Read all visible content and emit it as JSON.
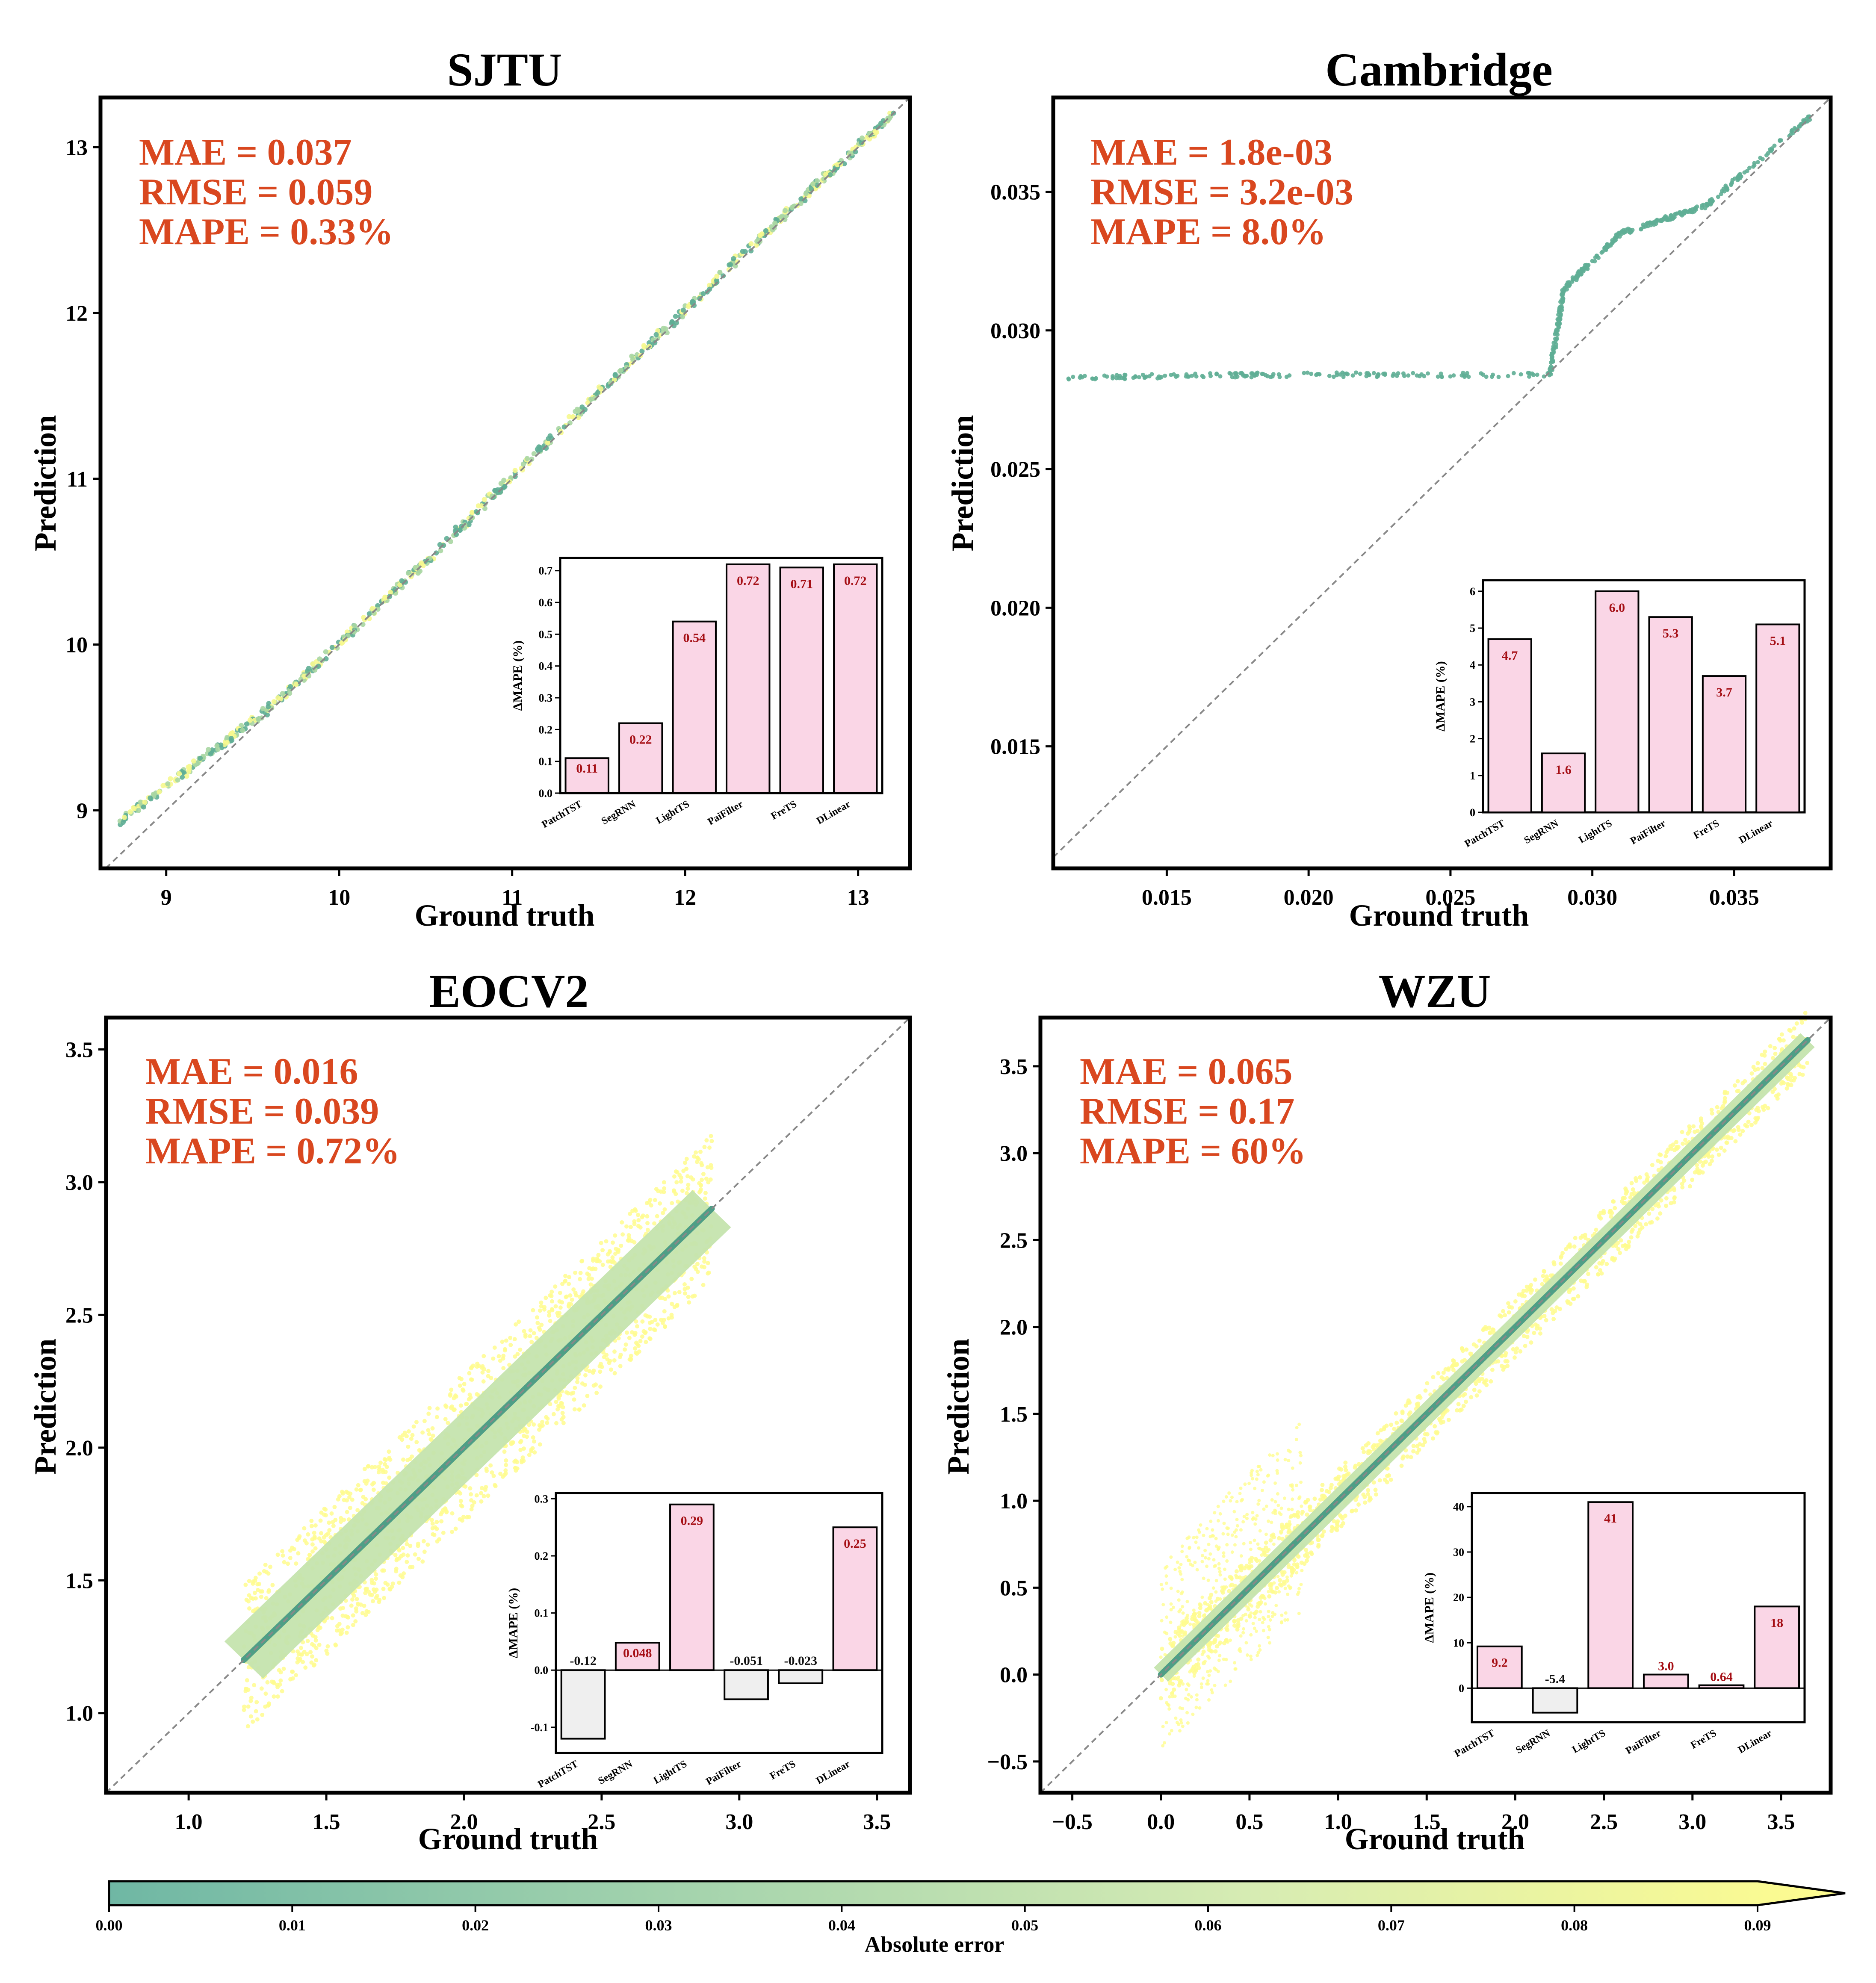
{
  "colors": {
    "metric_text": "#d9471f",
    "bar_positive": "#fad6e6",
    "bar_negative": "#efefef",
    "bar_label": "#a50f15",
    "bar_label_negative": "#111111",
    "diagonal": "#888888",
    "colormap": [
      "#6fb7a4",
      "#a4d3ad",
      "#d7ecb3",
      "#fffc8e"
    ]
  },
  "chart_data": [
    {
      "type": "scatter",
      "title": "SJTU",
      "xlabel": "Ground truth",
      "ylabel": "Prediction",
      "xlim": [
        8.62,
        13.3
      ],
      "ylim": [
        8.65,
        13.3
      ],
      "xticks": [
        "9",
        "10",
        "11",
        "12",
        "13"
      ],
      "xtick_values": [
        9,
        10,
        11,
        12,
        13
      ],
      "yticks": [
        "9",
        "10",
        "11",
        "12",
        "13"
      ],
      "ytick_values": [
        9,
        10,
        11,
        12,
        13
      ],
      "metrics": [
        "MAE = 0.037",
        "RMSE = 0.059",
        "MAPE = 0.33%"
      ],
      "scatter_trend": [
        [
          8.72,
          8.92
        ],
        [
          9.6,
          9.62
        ],
        [
          10.5,
          10.5
        ],
        [
          11.5,
          11.52
        ],
        [
          12.5,
          12.52
        ],
        [
          13.2,
          13.2
        ]
      ],
      "inset": {
        "type": "bar",
        "ylabel": "ΔMAPE (%)",
        "categories": [
          "PatchTST",
          "SegRNN",
          "LightTS",
          "PaiFilter",
          "FreTS",
          "DLinear"
        ],
        "values": [
          0.11,
          0.22,
          0.54,
          0.72,
          0.71,
          0.72
        ],
        "labels": [
          "0.11",
          "0.22",
          "0.54",
          "0.72",
          "0.71",
          "0.72"
        ],
        "ylim": [
          0,
          0.74
        ],
        "yticks": [
          "0.0",
          "0.1",
          "0.2",
          "0.3",
          "0.4",
          "0.5",
          "0.6",
          "0.7"
        ],
        "ytick_values": [
          0,
          0.1,
          0.2,
          0.3,
          0.4,
          0.5,
          0.6,
          0.7
        ]
      }
    },
    {
      "type": "scatter",
      "title": "Cambridge",
      "xlabel": "Ground truth",
      "ylabel": "Prediction",
      "xlim": [
        0.011,
        0.0384
      ],
      "ylim": [
        0.0106,
        0.0384
      ],
      "xticks": [
        "0.015",
        "0.020",
        "0.025",
        "0.030",
        "0.035"
      ],
      "xtick_values": [
        0.015,
        0.02,
        0.025,
        0.03,
        0.035
      ],
      "yticks": [
        "0.015",
        "0.020",
        "0.025",
        "0.030",
        "0.035"
      ],
      "ytick_values": [
        0.015,
        0.02,
        0.025,
        0.03,
        0.035
      ],
      "metrics": [
        "MAE = 1.8e-03",
        "RMSE = 3.2e-03",
        "MAPE = 8.0%"
      ],
      "scatter_trend": [
        [
          0.0115,
          0.0283
        ],
        [
          0.0185,
          0.0284
        ],
        [
          0.0285,
          0.0284
        ],
        [
          0.029,
          0.0315
        ],
        [
          0.031,
          0.0335
        ],
        [
          0.034,
          0.0345
        ],
        [
          0.0378,
          0.0378
        ]
      ],
      "inset": {
        "type": "bar",
        "ylabel": "ΔMAPE (%)",
        "categories": [
          "PatchTST",
          "SegRNN",
          "LightTS",
          "PaiFilter",
          "FreTS",
          "DLinear"
        ],
        "values": [
          4.7,
          1.6,
          6.0,
          5.3,
          3.7,
          5.1
        ],
        "labels": [
          "4.7",
          "1.6",
          "6.0",
          "5.3",
          "3.7",
          "5.1"
        ],
        "ylim": [
          0,
          6.3
        ],
        "yticks": [
          "0",
          "1",
          "2",
          "3",
          "4",
          "5",
          "6"
        ],
        "ytick_values": [
          0,
          1,
          2,
          3,
          4,
          5,
          6
        ]
      }
    },
    {
      "type": "scatter",
      "title": "EOCV2",
      "xlabel": "Ground truth",
      "ylabel": "Prediction",
      "xlim": [
        0.7,
        3.62
      ],
      "ylim": [
        0.7,
        3.62
      ],
      "xticks": [
        "1.0",
        "1.5",
        "2.0",
        "2.5",
        "3.0",
        "3.5"
      ],
      "xtick_values": [
        1.0,
        1.5,
        2.0,
        2.5,
        3.0,
        3.5
      ],
      "yticks": [
        "1.0",
        "1.5",
        "2.0",
        "2.5",
        "3.0",
        "3.5"
      ],
      "ytick_values": [
        1.0,
        1.5,
        2.0,
        2.5,
        3.0,
        3.5
      ],
      "metrics": [
        "MAE = 0.016",
        "RMSE = 0.039",
        "MAPE = 0.72%"
      ],
      "scatter_trend": [
        [
          1.2,
          1.2
        ],
        [
          2.9,
          2.9
        ]
      ],
      "inset": {
        "type": "bar",
        "ylabel": "ΔMAPE (%)",
        "categories": [
          "PatchTST",
          "SegRNN",
          "LightTS",
          "PaiFilter",
          "FreTS",
          "DLinear"
        ],
        "values": [
          -0.12,
          0.048,
          0.29,
          -0.051,
          -0.023,
          0.25
        ],
        "labels": [
          "-0.12",
          "0.048",
          "0.29",
          "-0.051",
          "-0.023",
          "0.25"
        ],
        "ylim": [
          -0.145,
          0.31
        ],
        "yticks": [
          "-0.1",
          "0.0",
          "0.1",
          "0.2",
          "0.3"
        ],
        "ytick_values": [
          -0.1,
          0,
          0.1,
          0.2,
          0.3
        ]
      }
    },
    {
      "type": "scatter",
      "title": "WZU",
      "xlabel": "Ground truth",
      "ylabel": "Prediction",
      "xlim": [
        -0.68,
        3.78
      ],
      "ylim": [
        -0.68,
        3.78
      ],
      "xticks": [
        "−0.5",
        "0.0",
        "0.5",
        "1.0",
        "1.5",
        "2.0",
        "2.5",
        "3.0",
        "3.5"
      ],
      "xtick_values": [
        -0.5,
        0,
        0.5,
        1.0,
        1.5,
        2.0,
        2.5,
        3.0,
        3.5
      ],
      "yticks": [
        "−0.5",
        "0.0",
        "0.5",
        "1.0",
        "1.5",
        "2.0",
        "2.5",
        "3.0",
        "3.5"
      ],
      "ytick_values": [
        -0.5,
        0,
        0.5,
        1.0,
        1.5,
        2.0,
        2.5,
        3.0,
        3.5
      ],
      "metrics": [
        "MAE = 0.065",
        "RMSE = 0.17",
        "MAPE = 60%"
      ],
      "scatter_trend": [
        [
          0.0,
          0.0
        ],
        [
          3.65,
          3.65
        ]
      ],
      "inset": {
        "type": "bar",
        "ylabel": "ΔMAPE (%)",
        "categories": [
          "PatchTST",
          "SegRNN",
          "LightTS",
          "PaiFilter",
          "FreTS",
          "DLinear"
        ],
        "values": [
          9.2,
          -5.4,
          41,
          3.0,
          0.64,
          18
        ],
        "labels": [
          "9.2",
          "-5.4",
          "41",
          "3.0",
          "0.64",
          "18"
        ],
        "ylim": [
          -7.5,
          43
        ],
        "yticks": [
          "0",
          "10",
          "20",
          "30",
          "40"
        ],
        "ytick_values": [
          0,
          10,
          20,
          30,
          40
        ]
      }
    }
  ],
  "colorbar": {
    "label": "Absolute error",
    "range": [
      0,
      0.09
    ],
    "ticks": [
      "0.00",
      "0.01",
      "0.02",
      "0.03",
      "0.04",
      "0.05",
      "0.06",
      "0.07",
      "0.08",
      "0.09"
    ],
    "tick_values": [
      0,
      0.01,
      0.02,
      0.03,
      0.04,
      0.05,
      0.06,
      0.07,
      0.08,
      0.09
    ]
  }
}
